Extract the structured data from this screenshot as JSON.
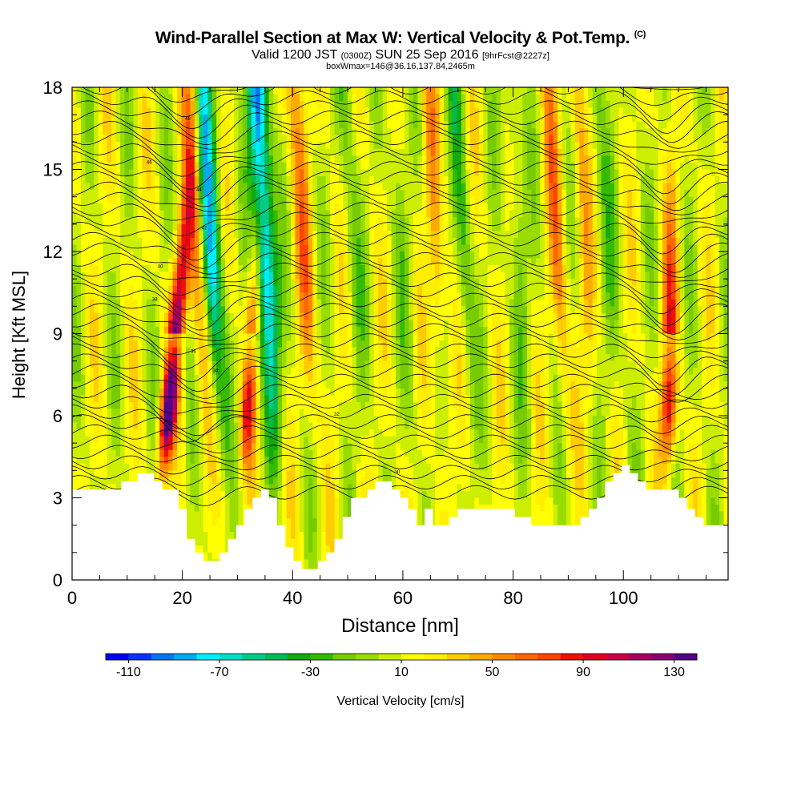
{
  "title": {
    "main": "Wind-Parallel Section at Max W: Vertical Velocity & Pot.Temp.",
    "copyright": "(C)",
    "valid_prefix": "Valid 1200 JST",
    "valid_utc": "(0300Z)",
    "valid_date": "SUN 25 Sep 2016",
    "forecast": "[9hrFcst@2227z]",
    "box": "boxWmax=146@36.16,137.84,2465m"
  },
  "chart_data": {
    "type": "heatmap",
    "xlabel": "Distance [nm]",
    "ylabel": "Height [Kft MSL]",
    "xlim": [
      0,
      119
    ],
    "ylim": [
      0,
      18
    ],
    "x_ticks": [
      "0",
      "20",
      "40",
      "60",
      "80",
      "100"
    ],
    "y_ticks": [
      "0",
      "3",
      "6",
      "9",
      "12",
      "15",
      "18"
    ],
    "colorbar": {
      "label": "Vertical Velocity [cm/s]",
      "ticks": [
        "-110",
        "-70",
        "-30",
        "10",
        "50",
        "90",
        "130"
      ],
      "levels": [
        -120,
        -110,
        -100,
        -90,
        -80,
        -70,
        -60,
        -50,
        -40,
        -30,
        -20,
        -10,
        0,
        10,
        20,
        30,
        40,
        50,
        60,
        70,
        80,
        90,
        100,
        110,
        120,
        130,
        140
      ],
      "colors": [
        "#0000ee",
        "#0033ff",
        "#0077ee",
        "#00aaee",
        "#00eeff",
        "#00ddcc",
        "#00cc88",
        "#00bb55",
        "#11aa11",
        "#33bb00",
        "#77cc00",
        "#99dd00",
        "#ccee00",
        "#ffff00",
        "#ffee00",
        "#ffcc00",
        "#ffaa00",
        "#ff8800",
        "#ff6600",
        "#ff4400",
        "#ee1100",
        "#dd0022",
        "#cc0044",
        "#aa0066",
        "#880077",
        "#550088"
      ]
    },
    "contour_labels": [
      "48",
      "46",
      "44",
      "42",
      "40",
      "38",
      "36",
      "34",
      "32",
      "30"
    ],
    "terrain_top_kft": [
      3.3,
      3.3,
      3.3,
      3.3,
      3.3,
      3.3,
      3.6,
      3.6,
      3.9,
      3.9,
      3.6,
      3.3,
      3.3,
      2.6,
      1.5,
      1,
      0.7,
      0.7,
      1,
      1.5,
      2,
      2.6,
      3,
      3.3,
      3,
      2,
      1.2,
      0.7,
      0.4,
      0.4,
      0.7,
      1,
      1.5,
      2.3,
      3,
      3,
      3.3,
      3.6,
      3.6,
      3.3,
      3,
      2.6,
      2,
      2.6,
      2,
      2,
      2.3,
      2.6,
      2.6,
      2.6,
      2.6,
      2.6,
      2.6,
      2.6,
      2.3,
      2.3,
      2,
      2,
      2,
      2,
      2,
      2,
      2.3,
      2.6,
      3,
      3.6,
      3.9,
      4.2,
      3.9,
      3.6,
      3.3,
      3.3,
      3.3,
      3.3,
      3,
      2.6,
      2.3,
      2,
      2,
      2
    ],
    "updrafts": [
      {
        "x_at_top": 23,
        "x_at_bottom": 16,
        "peak_cm_s": 146
      },
      {
        "x_at_top": 35,
        "x_at_bottom": 31,
        "peak_cm_s": 80
      },
      {
        "x_at_top": 109,
        "x_at_bottom": 108,
        "peak_cm_s": 90
      }
    ]
  }
}
